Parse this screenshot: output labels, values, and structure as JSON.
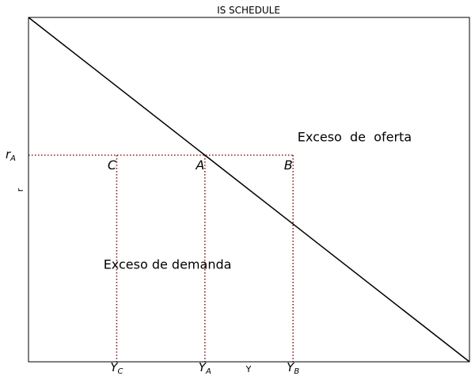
{
  "chart_data": {
    "type": "line",
    "title": "IS SCHEDULE",
    "xlabel": "Y",
    "ylabel": "r",
    "xlim": [
      0,
      10
    ],
    "ylim": [
      0,
      10
    ],
    "grid": false,
    "series": [
      {
        "name": "",
        "x": [
          0,
          10
        ],
        "y": [
          10,
          0
        ],
        "color": "#000000"
      }
    ],
    "reference": {
      "r_level": 6,
      "Y_C": 2,
      "Y_A": 4,
      "Y_B": 6,
      "color": "#8b1a1a"
    },
    "x_ticks": [
      {
        "x": 2,
        "main": "Y",
        "sub": "C"
      },
      {
        "x": 4,
        "main": "Y",
        "sub": "A"
      },
      {
        "x": 6,
        "main": "Y",
        "sub": "B"
      }
    ],
    "y_ticks": [
      {
        "y": 6,
        "main": "r",
        "sub": "A"
      }
    ],
    "points": [
      {
        "label": "C",
        "x": 2,
        "y": 6
      },
      {
        "label": "A",
        "x": 4,
        "y": 6
      },
      {
        "label": "B",
        "x": 6,
        "y": 6
      }
    ],
    "annotations": [
      {
        "text": "Exceso  de  oferta",
        "x": 6.1,
        "y": 6.4
      },
      {
        "text": "Exceso de demanda",
        "x": 1.7,
        "y": 2.7
      }
    ]
  }
}
